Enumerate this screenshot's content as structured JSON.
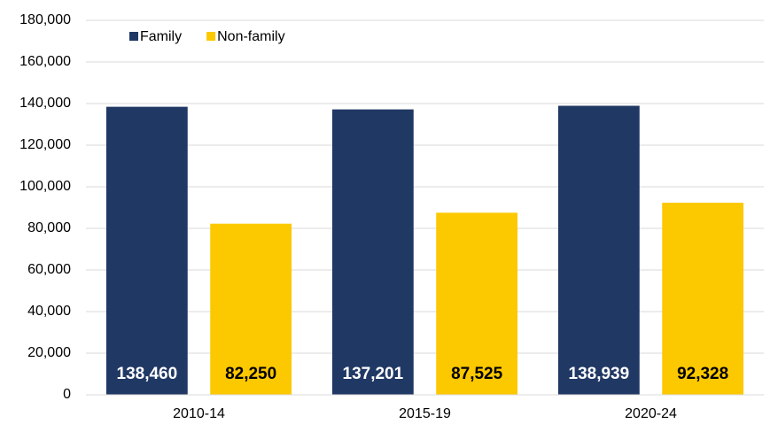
{
  "chart_data": {
    "type": "bar",
    "categories": [
      "2010-14",
      "2015-19",
      "2020-24"
    ],
    "series": [
      {
        "name": "Family",
        "color": "#203864",
        "values": [
          138460,
          137201,
          138939
        ],
        "value_labels": [
          "138,460",
          "137,201",
          "138,939"
        ]
      },
      {
        "name": "Non-family",
        "color": "#fcc800",
        "values": [
          82250,
          87525,
          92328
        ],
        "value_labels": [
          "82,250",
          "87,525",
          "92,328"
        ]
      }
    ],
    "ylim": [
      0,
      180000
    ],
    "yticks": [
      0,
      {
        "value": 20000,
        "label": "20,000"
      },
      {
        "value": 40000,
        "label": "40,000"
      },
      {
        "value": 60000,
        "label": "60,000"
      },
      {
        "value": 80000,
        "label": "80,000"
      },
      {
        "value": 100000,
        "label": "100,000"
      },
      {
        "value": 120000,
        "label": "120,000"
      },
      {
        "value": 140000,
        "label": "140,000"
      },
      {
        "value": 160000,
        "label": "160,000"
      },
      {
        "value": 180000,
        "label": "180,000"
      }
    ],
    "grid": true,
    "legend": "top-left"
  }
}
